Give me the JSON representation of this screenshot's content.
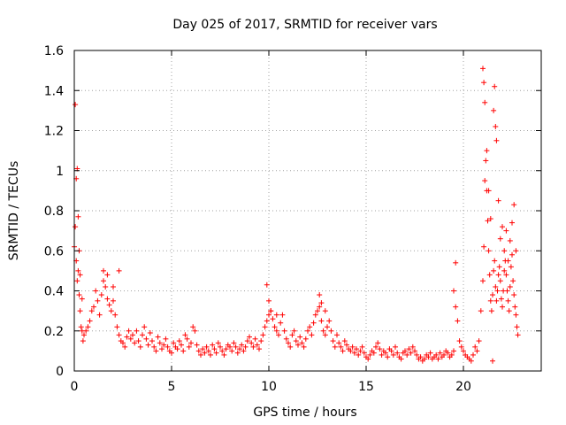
{
  "chart_data": {
    "type": "scatter",
    "title": "Day 025 of 2017, SRMTID for receiver vars",
    "xlabel": "GPS time / hours",
    "ylabel": "SRMTID / TECUs",
    "xlim": [
      0,
      24
    ],
    "ylim": [
      0,
      1.6
    ],
    "xticks": [
      0,
      5,
      10,
      15,
      20
    ],
    "xtick_labels": [
      "0",
      "5",
      "10",
      "15",
      "20"
    ],
    "yticks": [
      0,
      0.2,
      0.4,
      0.6,
      0.8,
      1.0,
      1.2,
      1.4,
      1.6
    ],
    "ytick_labels": [
      "0",
      "0.2",
      "0.4",
      "0.6",
      "0.8",
      "1",
      "1.2",
      "1.4",
      "1.6"
    ],
    "grid": true,
    "marker": "+",
    "color": "#ff0000",
    "series": [
      {
        "name": "SRMTID",
        "x": [
          0.0,
          0.05,
          0.1,
          0.15,
          0.2,
          0.25,
          0.3,
          0.35,
          0.4,
          0.45,
          0.5,
          0.6,
          0.7,
          0.8,
          0.9,
          1.0,
          1.1,
          1.2,
          1.3,
          1.4,
          1.5,
          1.6,
          1.7,
          1.8,
          1.9,
          2.0,
          2.1,
          2.2,
          2.3,
          2.4,
          2.5,
          2.6,
          2.7,
          2.8,
          2.9,
          3.0,
          3.1,
          3.2,
          3.3,
          3.4,
          3.5,
          3.6,
          3.7,
          3.8,
          3.9,
          4.0,
          4.1,
          4.2,
          4.3,
          4.4,
          4.5,
          4.6,
          4.7,
          4.8,
          4.9,
          5.0,
          5.1,
          5.2,
          5.3,
          5.4,
          5.5,
          5.6,
          5.7,
          5.8,
          5.9,
          6.0,
          6.1,
          6.2,
          6.3,
          6.4,
          6.5,
          6.6,
          6.7,
          6.8,
          6.9,
          7.0,
          7.1,
          7.2,
          7.3,
          7.4,
          7.5,
          7.6,
          7.7,
          7.8,
          7.9,
          8.0,
          8.1,
          8.2,
          8.3,
          8.4,
          8.5,
          8.6,
          8.7,
          8.8,
          8.9,
          9.0,
          9.1,
          9.2,
          9.3,
          9.4,
          9.5,
          9.6,
          9.7,
          9.8,
          9.9,
          10.0,
          10.1,
          10.2,
          10.3,
          10.4,
          10.5,
          10.6,
          10.7,
          10.8,
          10.9,
          11.0,
          11.1,
          11.2,
          11.3,
          11.4,
          11.5,
          11.6,
          11.7,
          11.8,
          11.9,
          12.0,
          12.1,
          12.2,
          12.3,
          12.4,
          12.5,
          12.6,
          12.7,
          12.8,
          12.9,
          13.0,
          13.1,
          13.2,
          13.3,
          13.4,
          13.5,
          13.6,
          13.7,
          13.8,
          13.9,
          14.0,
          14.1,
          14.2,
          14.3,
          14.4,
          14.5,
          14.6,
          14.7,
          14.8,
          14.9,
          15.0,
          15.1,
          15.2,
          15.3,
          15.4,
          15.5,
          15.6,
          15.7,
          15.8,
          15.9,
          16.0,
          16.1,
          16.2,
          16.3,
          16.4,
          16.5,
          16.6,
          16.7,
          16.8,
          16.9,
          17.0,
          17.1,
          17.2,
          17.3,
          17.4,
          17.5,
          17.6,
          17.7,
          17.8,
          17.9,
          18.0,
          18.1,
          18.2,
          18.3,
          18.4,
          18.5,
          18.6,
          18.7,
          18.8,
          18.9,
          19.0,
          19.1,
          19.2,
          19.3,
          19.4,
          19.5,
          19.6,
          19.7,
          19.8,
          19.9,
          20.0,
          20.1,
          20.2,
          20.3,
          20.4,
          20.5,
          20.6,
          20.7,
          20.8,
          20.9,
          21.0,
          21.05,
          21.1,
          21.15,
          21.2,
          21.25,
          21.3,
          21.35,
          21.4,
          21.45,
          21.5,
          21.55,
          21.6,
          21.65,
          21.7,
          21.75,
          21.8,
          21.85,
          21.9,
          21.95,
          22.0,
          22.05,
          22.1,
          22.15,
          22.2,
          22.25,
          22.3,
          22.35,
          22.4,
          22.45,
          22.5,
          22.55,
          22.6,
          22.65,
          22.7,
          22.75,
          22.8,
          0.05,
          0.1,
          0.15,
          0.2,
          0.25,
          0.3,
          0.4,
          1.5,
          1.7,
          2.0,
          2.3,
          9.9,
          10.0,
          10.1,
          10.4,
          12.6,
          12.7,
          12.9,
          19.5,
          19.6,
          21.0,
          21.05,
          21.1,
          21.2,
          21.3,
          21.4,
          21.5,
          21.55,
          21.6,
          21.65,
          21.7,
          21.8,
          21.9,
          22.0,
          22.1,
          22.2,
          22.3,
          22.4,
          22.5,
          22.6,
          22.7
        ],
        "y": [
          0.62,
          0.72,
          0.55,
          0.45,
          0.5,
          0.38,
          0.3,
          0.22,
          0.2,
          0.15,
          0.18,
          0.2,
          0.22,
          0.25,
          0.3,
          0.32,
          0.4,
          0.35,
          0.28,
          0.38,
          0.45,
          0.42,
          0.36,
          0.33,
          0.3,
          0.35,
          0.28,
          0.22,
          0.18,
          0.15,
          0.14,
          0.12,
          0.17,
          0.2,
          0.16,
          0.18,
          0.14,
          0.2,
          0.15,
          0.12,
          0.18,
          0.22,
          0.16,
          0.13,
          0.19,
          0.15,
          0.12,
          0.1,
          0.17,
          0.14,
          0.11,
          0.13,
          0.16,
          0.12,
          0.1,
          0.09,
          0.14,
          0.12,
          0.11,
          0.15,
          0.13,
          0.1,
          0.18,
          0.16,
          0.12,
          0.14,
          0.22,
          0.2,
          0.13,
          0.1,
          0.08,
          0.11,
          0.09,
          0.12,
          0.1,
          0.08,
          0.13,
          0.11,
          0.09,
          0.14,
          0.12,
          0.1,
          0.08,
          0.11,
          0.13,
          0.12,
          0.1,
          0.14,
          0.12,
          0.09,
          0.11,
          0.13,
          0.1,
          0.12,
          0.15,
          0.17,
          0.14,
          0.12,
          0.16,
          0.13,
          0.11,
          0.15,
          0.18,
          0.22,
          0.25,
          0.28,
          0.3,
          0.26,
          0.22,
          0.2,
          0.18,
          0.24,
          0.28,
          0.2,
          0.16,
          0.14,
          0.12,
          0.18,
          0.2,
          0.15,
          0.13,
          0.17,
          0.14,
          0.12,
          0.16,
          0.2,
          0.22,
          0.18,
          0.24,
          0.28,
          0.3,
          0.32,
          0.25,
          0.2,
          0.18,
          0.22,
          0.25,
          0.2,
          0.15,
          0.12,
          0.18,
          0.14,
          0.12,
          0.1,
          0.15,
          0.13,
          0.11,
          0.1,
          0.12,
          0.09,
          0.11,
          0.08,
          0.1,
          0.12,
          0.09,
          0.07,
          0.06,
          0.08,
          0.1,
          0.09,
          0.12,
          0.14,
          0.11,
          0.08,
          0.1,
          0.09,
          0.07,
          0.11,
          0.1,
          0.08,
          0.12,
          0.09,
          0.07,
          0.06,
          0.09,
          0.1,
          0.08,
          0.11,
          0.09,
          0.12,
          0.1,
          0.08,
          0.06,
          0.07,
          0.05,
          0.06,
          0.08,
          0.07,
          0.09,
          0.06,
          0.07,
          0.08,
          0.06,
          0.09,
          0.07,
          0.08,
          0.1,
          0.09,
          0.07,
          0.08,
          0.1,
          0.32,
          0.25,
          0.15,
          0.12,
          0.1,
          0.08,
          0.07,
          0.06,
          0.05,
          0.08,
          0.12,
          0.1,
          0.15,
          0.3,
          0.45,
          0.62,
          0.95,
          1.05,
          0.9,
          0.75,
          0.6,
          0.48,
          0.35,
          0.3,
          0.38,
          0.5,
          0.55,
          0.42,
          0.35,
          0.4,
          0.48,
          0.52,
          0.45,
          0.36,
          0.32,
          0.4,
          0.5,
          0.55,
          0.48,
          0.4,
          0.35,
          0.3,
          0.42,
          0.52,
          0.58,
          0.45,
          0.38,
          0.32,
          0.28,
          0.22,
          0.18,
          1.33,
          0.96,
          1.01,
          0.77,
          0.6,
          0.48,
          0.36,
          0.5,
          0.48,
          0.42,
          0.5,
          0.43,
          0.35,
          0.3,
          0.28,
          0.38,
          0.34,
          0.3,
          0.4,
          0.54,
          1.51,
          1.44,
          1.34,
          1.1,
          0.9,
          0.76,
          0.05,
          1.3,
          1.42,
          1.22,
          1.15,
          0.85,
          0.66,
          0.72,
          0.6,
          0.7,
          0.55,
          0.65,
          0.74,
          0.83,
          0.6
        ]
      }
    ]
  }
}
